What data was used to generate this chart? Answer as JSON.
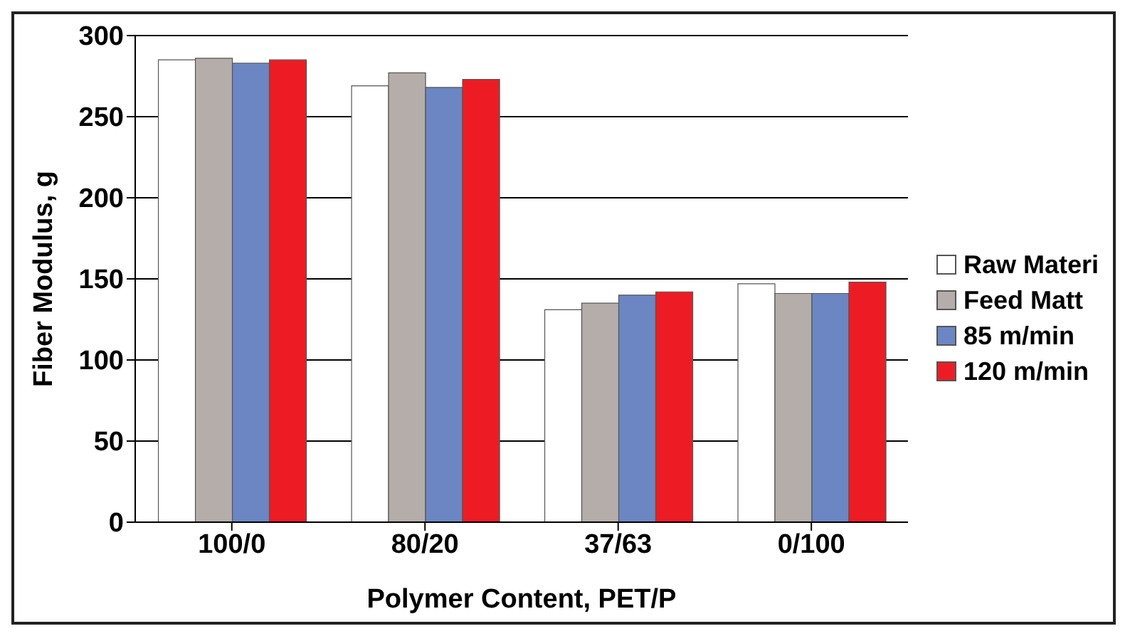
{
  "chart_data": {
    "type": "bar",
    "xlabel": "Polymer Content, PET/P",
    "ylabel": "Fiber Modulus, g",
    "categories": [
      "100/0",
      "80/20",
      "37/63",
      "0/100"
    ],
    "series": [
      {
        "name": "Raw Materi",
        "color": "#ffffff",
        "values": [
          285,
          269,
          131,
          147
        ]
      },
      {
        "name": "Feed Matt",
        "color": "#b5ada9",
        "values": [
          286,
          277,
          135,
          141
        ]
      },
      {
        "name": "85 m/min",
        "color": "#6b86c2",
        "values": [
          283,
          268,
          140,
          141
        ]
      },
      {
        "name": "120 m/min",
        "color": "#ed1c24",
        "values": [
          285,
          273,
          142,
          148
        ]
      }
    ],
    "ylim": [
      0,
      300
    ],
    "yticks": [
      0,
      50,
      100,
      150,
      200,
      250,
      300
    ],
    "grid": "y",
    "legend": "right"
  }
}
